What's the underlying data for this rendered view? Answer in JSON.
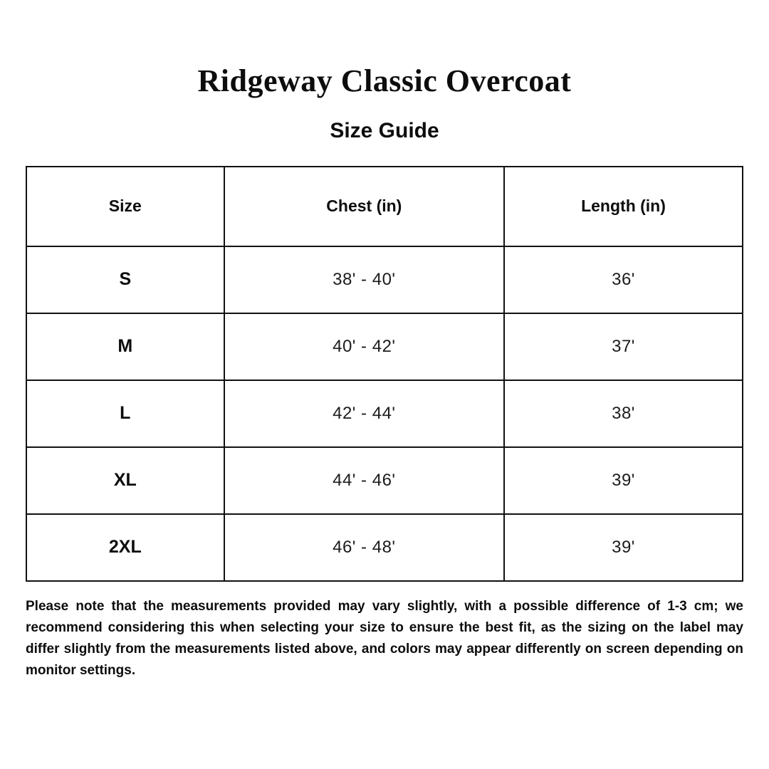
{
  "page": {
    "title": "Ridgeway Classic Overcoat",
    "subtitle": "Size Guide",
    "note": "Please note that the measurements provided may vary slightly, with a possible difference of 1-3 cm; we recommend considering this when selecting your size to ensure the best fit, as the sizing on the label may differ slightly from the measurements listed above, and colors may appear differently on screen depending on monitor settings."
  },
  "size_table": {
    "columns": [
      "Size",
      "Chest (in)",
      "Length (in)"
    ],
    "rows": [
      {
        "size": "S",
        "chest": "38' - 40'",
        "length": "36'"
      },
      {
        "size": "M",
        "chest": "40' - 42'",
        "length": "37'"
      },
      {
        "size": "L",
        "chest": "42' - 44'",
        "length": "38'"
      },
      {
        "size": "XL",
        "chest": "44' - 46'",
        "length": "39'"
      },
      {
        "size": "2XL",
        "chest": "46' - 48'",
        "length": "39'"
      }
    ]
  },
  "colors": {
    "background": "#ffffff",
    "text": "#0d0d0d",
    "table_border": "#111111"
  }
}
